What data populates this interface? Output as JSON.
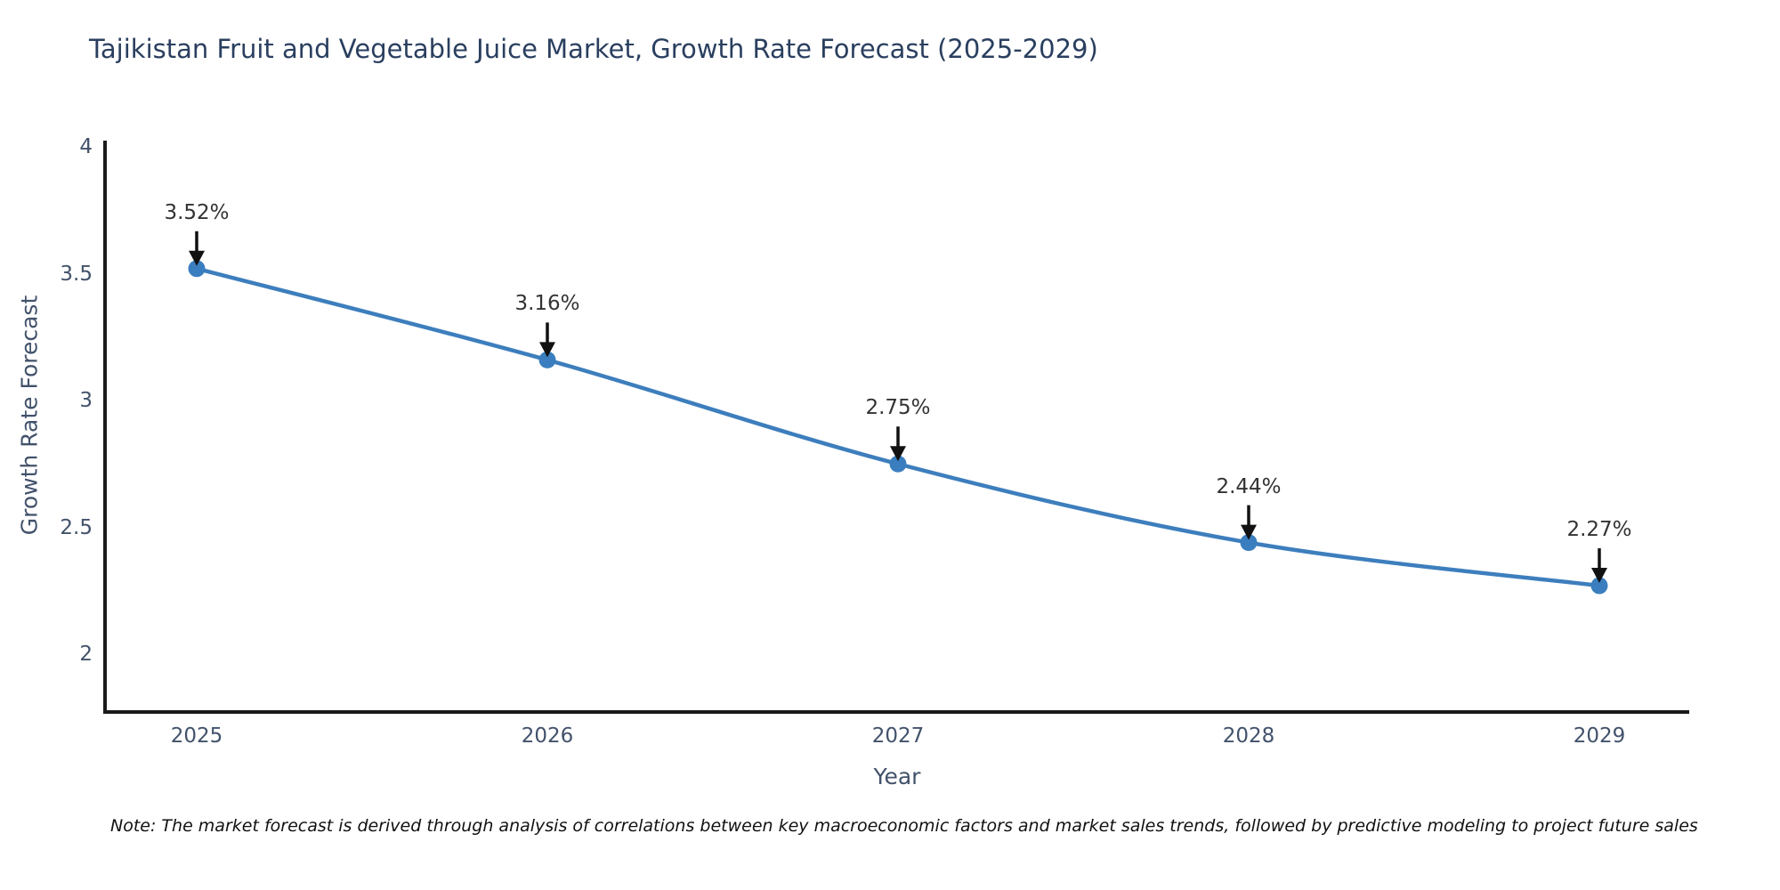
{
  "chart": {
    "title": "Tajikistan Fruit and Vegetable Juice Market, Growth Rate Forecast (2025-2029)",
    "note": "Note: The market forecast is derived through analysis of correlations between key macroeconomic factors and market sales trends, followed by predictive modeling to project future sales"
  },
  "chart_data": {
    "type": "line",
    "title": "Tajikistan Fruit and Vegetable Juice Market, Growth Rate Forecast (2025-2029)",
    "xlabel": "Year",
    "ylabel": "Growth Rate Forecast",
    "categories": [
      "2025",
      "2026",
      "2027",
      "2028",
      "2029"
    ],
    "series": [
      {
        "name": "Growth Rate Forecast",
        "values": [
          3.52,
          3.16,
          2.75,
          2.44,
          2.27
        ],
        "point_labels": [
          "3.52%",
          "3.16%",
          "2.75%",
          "2.44%",
          "2.27%"
        ]
      }
    ],
    "ylim": [
      1.77,
      4.02
    ],
    "yticks": [
      2,
      2.5,
      3,
      3.5,
      4
    ],
    "ytick_labels": [
      "2",
      "2.5",
      "3",
      "3.5",
      "4"
    ],
    "grid": false,
    "legend": "none",
    "line_shape": "spline",
    "annotation_style": "black-arrow-above-point",
    "colors": {
      "line": "#3d7ebd",
      "marker": "#3a7ebf",
      "arrow": "#111111",
      "title": "#2a3f5f",
      "tick": "#42526b",
      "axis": "#1a1a1a",
      "annotation": "#333333",
      "background": "#ffffff"
    }
  }
}
